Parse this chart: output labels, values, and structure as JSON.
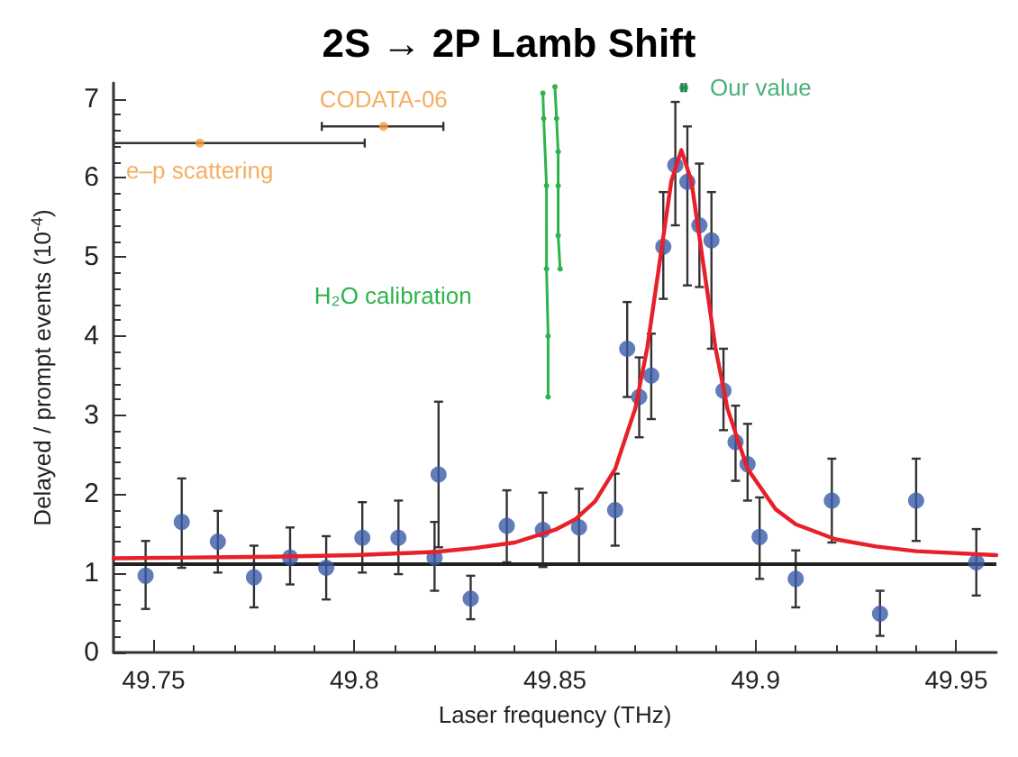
{
  "chart_data": {
    "type": "scatter",
    "title": "2S → 2P Lamb Shift",
    "xlabel": "Laser frequency (THz)",
    "ylabel": "Delayed / prompt events (10$^{-4}$)",
    "xlim": [
      49.74,
      49.96
    ],
    "ylim": [
      0,
      7.2
    ],
    "xticks": [
      49.75,
      49.8,
      49.85,
      49.9,
      49.95
    ],
    "yticks": [
      0,
      1,
      2,
      3,
      4,
      5,
      6,
      7
    ],
    "marker": "circle",
    "series": [
      {
        "color": "#3a5ba8",
        "x": [
          49.748,
          49.757,
          49.766,
          49.775,
          49.784,
          49.793,
          49.802,
          49.811,
          49.82,
          49.821,
          49.829,
          49.838,
          49.847,
          49.856,
          49.865,
          49.868,
          49.871,
          49.874,
          49.877,
          49.88,
          49.883,
          49.886,
          49.889,
          49.892,
          49.895,
          49.898,
          49.901,
          49.91,
          49.919,
          49.931,
          49.94,
          49.955
        ],
        "values": [
          0.97,
          1.65,
          1.4,
          0.95,
          1.2,
          1.07,
          1.45,
          1.45,
          1.2,
          2.25,
          0.68,
          1.6,
          1.55,
          1.58,
          1.8,
          3.84,
          3.23,
          3.5,
          5.13,
          6.16,
          5.95,
          5.4,
          5.21,
          3.31,
          2.66,
          2.38,
          1.46,
          0.93,
          1.92,
          0.49,
          1.92,
          1.14
        ],
        "errors": [
          [
            0.55,
            1.41
          ],
          [
            1.07,
            2.2
          ],
          [
            1.01,
            1.79
          ],
          [
            0.57,
            1.35
          ],
          [
            0.86,
            1.58
          ],
          [
            0.67,
            1.47
          ],
          [
            1.01,
            1.9
          ],
          [
            0.99,
            1.92
          ],
          [
            0.78,
            1.65
          ],
          [
            1.33,
            3.17
          ],
          [
            0.42,
            0.97
          ],
          [
            1.14,
            2.05
          ],
          [
            1.08,
            2.02
          ],
          [
            1.12,
            2.07
          ],
          [
            1.35,
            2.26
          ],
          [
            3.23,
            4.43
          ],
          [
            2.72,
            3.73
          ],
          [
            2.95,
            4.03
          ],
          [
            4.47,
            5.82
          ],
          [
            5.4,
            6.96
          ],
          [
            4.64,
            6.65
          ],
          [
            4.62,
            6.18
          ],
          [
            3.84,
            5.82
          ],
          [
            2.81,
            3.84
          ],
          [
            2.17,
            3.12
          ],
          [
            1.92,
            2.89
          ],
          [
            0.93,
            1.96
          ],
          [
            0.57,
            1.29
          ],
          [
            1.39,
            2.45
          ],
          [
            0.21,
            0.78
          ],
          [
            1.41,
            2.45
          ],
          [
            0.72,
            1.56
          ]
        ]
      },
      {
        "type": "line",
        "color": "#e8202a",
        "marker": "none",
        "x": [
          49.74,
          49.76,
          49.78,
          49.8,
          49.82,
          49.83,
          49.84,
          49.85,
          49.855,
          49.86,
          49.865,
          49.87,
          49.873,
          49.876,
          49.879,
          49.8815,
          49.884,
          49.887,
          49.89,
          49.893,
          49.898,
          49.905,
          49.91,
          49.92,
          49.93,
          49.94,
          49.96
        ],
        "values": [
          1.19,
          1.2,
          1.21,
          1.23,
          1.27,
          1.32,
          1.39,
          1.55,
          1.68,
          1.91,
          2.32,
          3.08,
          3.85,
          4.9,
          5.96,
          6.35,
          5.96,
          4.9,
          3.85,
          3.08,
          2.32,
          1.81,
          1.62,
          1.43,
          1.34,
          1.28,
          1.23
        ]
      },
      {
        "type": "line",
        "name": "H₂O calibration",
        "color": "#2db34a",
        "x": [
          49.847,
          49.8472,
          49.8479,
          49.8479,
          49.8483,
          49.8483,
          null,
          49.85,
          49.8504,
          49.8508,
          49.8508,
          49.8508,
          49.8513
        ],
        "values": [
          7.07,
          6.75,
          5.9,
          4.85,
          4.0,
          3.23,
          null,
          7.15,
          6.75,
          6.33,
          5.9,
          5.27,
          4.85
        ]
      },
      {
        "name": "CODATA-06",
        "color": "#f39a3c",
        "x": [
          49.8073
        ],
        "values": [
          6.65
        ],
        "xerrors": [
          [
            49.7919,
            49.8222
          ]
        ]
      },
      {
        "name": "e–p scattering",
        "color": "#f39a3c",
        "x": [
          49.7615
        ],
        "values": [
          6.44
        ],
        "xerrors": [
          [
            49.74,
            49.8026
          ]
        ]
      },
      {
        "name": "Our value",
        "color": "#1a9e55",
        "x": [
          49.8821
        ],
        "values": [
          7.14
        ],
        "xerrors": [
          [
            49.8816,
            49.8826
          ]
        ]
      }
    ],
    "ref_lines": [
      {
        "axis": "y",
        "value": 1.12,
        "color": "#222222"
      }
    ]
  }
}
